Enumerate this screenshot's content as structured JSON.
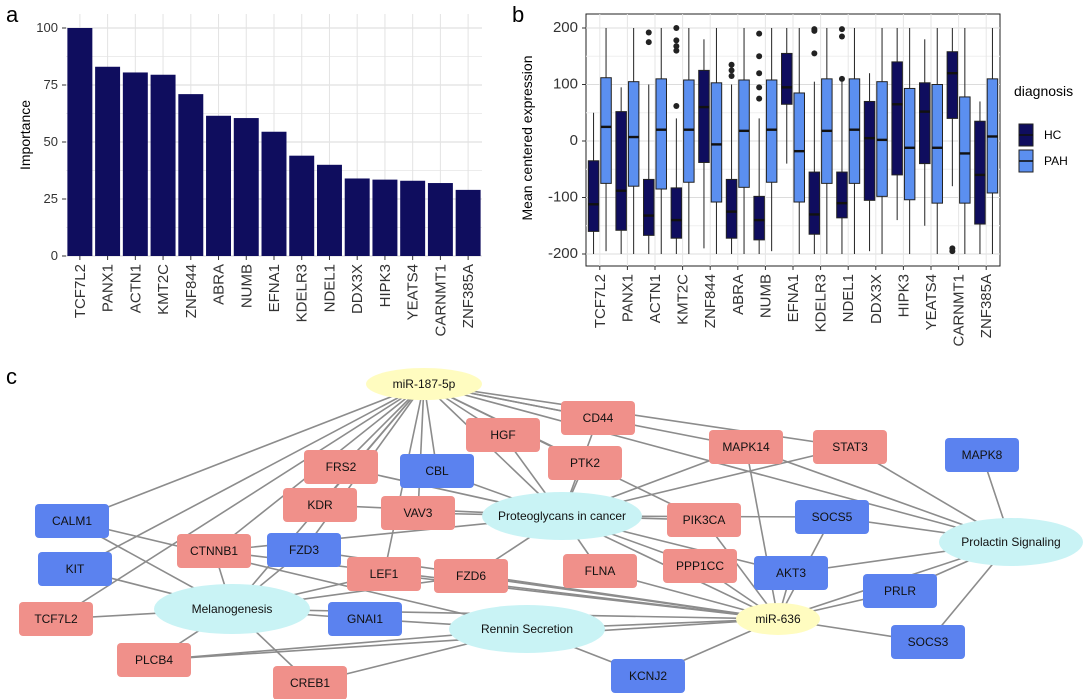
{
  "panels": {
    "a": "a",
    "b": "b",
    "c": "c"
  },
  "colors": {
    "hc": "#0f0d5e",
    "pah": "#5b8ff0",
    "red_node": "#f0908a",
    "blue_node": "#5b82ef",
    "pathway_node": "#c9f3f5",
    "mirna_node": "#fffcc0",
    "edge": "#8c8c8c"
  },
  "chart_data": [
    {
      "type": "bar",
      "panel": "a",
      "categories": [
        "TCF7L2",
        "PANX1",
        "ACTN1",
        "KMT2C",
        "ZNF844",
        "ABRA",
        "NUMB",
        "EFNA1",
        "KDELR3",
        "NDEL1",
        "DDX3X",
        "HIPK3",
        "YEATS4",
        "CARNMT1",
        "ZNF385A"
      ],
      "values": [
        100,
        83,
        80.5,
        79.5,
        71,
        61.5,
        60.5,
        54.5,
        44,
        40,
        34,
        33.5,
        33,
        32,
        29
      ],
      "ylabel": "Importance",
      "xlabel": "",
      "ylim": [
        0,
        100
      ],
      "yticks": [
        0,
        25,
        50,
        75,
        100
      ],
      "grid": true,
      "color": "#0f0d5e"
    },
    {
      "type": "boxplot",
      "panel": "b",
      "categories": [
        "TCF7L2",
        "PANX1",
        "ACTN1",
        "KMT2C",
        "ZNF844",
        "ABRA",
        "NUMB",
        "EFNA1",
        "KDELR3",
        "NDEL1",
        "DDX3X",
        "HIPK3",
        "YEATS4",
        "CARNMT1",
        "ZNF385A"
      ],
      "ylabel": "Mean centered expression",
      "ylim": [
        -210,
        210
      ],
      "yticks": [
        -200,
        -100,
        0,
        100,
        200
      ],
      "grid": true,
      "legend": {
        "title": "diagnosis",
        "position": "right",
        "entries": [
          "HC",
          "PAH"
        ]
      },
      "series": [
        {
          "name": "HC",
          "boxes": [
            {
              "min": -200,
              "q1": -160,
              "median": -112,
              "q3": -35,
              "max": 50,
              "outliers": []
            },
            {
              "min": -200,
              "q1": -158,
              "median": -88,
              "q3": 52,
              "max": 95,
              "outliers": []
            },
            {
              "min": -200,
              "q1": -167,
              "median": -132,
              "q3": -68,
              "max": 100,
              "outliers": [
                175,
                192
              ]
            },
            {
              "min": -200,
              "q1": -172,
              "median": -140,
              "q3": -83,
              "max": 40,
              "outliers": [
                62,
                160,
                168,
                178,
                200
              ]
            },
            {
              "min": -190,
              "q1": -38,
              "median": 60,
              "q3": 125,
              "max": 180,
              "outliers": []
            },
            {
              "min": -200,
              "q1": -172,
              "median": -125,
              "q3": -68,
              "max": 100,
              "outliers": [
                115,
                125,
                135
              ]
            },
            {
              "min": -200,
              "q1": -175,
              "median": -140,
              "q3": -98,
              "max": 40,
              "outliers": [
                75,
                95,
                120,
                150,
                190
              ]
            },
            {
              "min": -40,
              "q1": 65,
              "median": 95,
              "q3": 155,
              "max": 200,
              "outliers": []
            },
            {
              "min": -200,
              "q1": -165,
              "median": -130,
              "q3": -55,
              "max": 105,
              "outliers": [
                155,
                195,
                198
              ]
            },
            {
              "min": -200,
              "q1": -136,
              "median": -110,
              "q3": -55,
              "max": 105,
              "outliers": [
                110,
                185,
                198
              ]
            },
            {
              "min": -195,
              "q1": -105,
              "median": 5,
              "q3": 70,
              "max": 120,
              "outliers": []
            },
            {
              "min": -140,
              "q1": -60,
              "median": 65,
              "q3": 140,
              "max": 200,
              "outliers": []
            },
            {
              "min": -150,
              "q1": -40,
              "median": 52,
              "q3": 103,
              "max": 180,
              "outliers": []
            },
            {
              "min": -80,
              "q1": 40,
              "median": 120,
              "q3": 158,
              "max": 200,
              "outliers": [
                -190,
                -195
              ]
            },
            {
              "min": -200,
              "q1": -147,
              "median": -60,
              "q3": 35,
              "max": 70,
              "outliers": []
            }
          ]
        },
        {
          "name": "PAH",
          "boxes": [
            {
              "min": -195,
              "q1": -75,
              "median": 25,
              "q3": 112,
              "max": 200,
              "outliers": []
            },
            {
              "min": -200,
              "q1": -80,
              "median": 7,
              "q3": 105,
              "max": 200,
              "outliers": []
            },
            {
              "min": -200,
              "q1": -85,
              "median": 20,
              "q3": 110,
              "max": 200,
              "outliers": []
            },
            {
              "min": -200,
              "q1": -73,
              "median": 20,
              "q3": 108,
              "max": 200,
              "outliers": []
            },
            {
              "min": -200,
              "q1": -108,
              "median": -6,
              "q3": 103,
              "max": 200,
              "outliers": []
            },
            {
              "min": -200,
              "q1": -82,
              "median": 18,
              "q3": 108,
              "max": 200,
              "outliers": []
            },
            {
              "min": -195,
              "q1": -73,
              "median": 20,
              "q3": 108,
              "max": 200,
              "outliers": []
            },
            {
              "min": -200,
              "q1": -108,
              "median": -18,
              "q3": 85,
              "max": 200,
              "outliers": []
            },
            {
              "min": -200,
              "q1": -75,
              "median": 18,
              "q3": 110,
              "max": 200,
              "outliers": []
            },
            {
              "min": -200,
              "q1": -75,
              "median": 20,
              "q3": 110,
              "max": 200,
              "outliers": []
            },
            {
              "min": -200,
              "q1": -98,
              "median": 2,
              "q3": 105,
              "max": 200,
              "outliers": []
            },
            {
              "min": -200,
              "q1": -104,
              "median": -12,
              "q3": 93,
              "max": 200,
              "outliers": []
            },
            {
              "min": -200,
              "q1": -110,
              "median": -12,
              "q3": 100,
              "max": 200,
              "outliers": []
            },
            {
              "min": -200,
              "q1": -110,
              "median": -22,
              "q3": 78,
              "max": 200,
              "outliers": []
            },
            {
              "min": -200,
              "q1": -92,
              "median": 8,
              "q3": 110,
              "max": 200,
              "outliers": []
            }
          ]
        }
      ]
    },
    {
      "type": "network",
      "panel": "c",
      "nodes": [
        {
          "id": "mir187",
          "label": "miR-187-5p",
          "kind": "mirna"
        },
        {
          "id": "mir636",
          "label": "miR-636",
          "kind": "mirna"
        },
        {
          "id": "proteo",
          "label": "Proteoglycans in cancer",
          "kind": "pathway"
        },
        {
          "id": "melano",
          "label": "Melanogenesis",
          "kind": "pathway"
        },
        {
          "id": "rennin",
          "label": "Rennin Secretion",
          "kind": "pathway"
        },
        {
          "id": "prolactin",
          "label": "Prolactin Signaling",
          "kind": "pathway"
        },
        {
          "id": "cd44",
          "label": "CD44",
          "kind": "red"
        },
        {
          "id": "hgf",
          "label": "HGF",
          "kind": "red"
        },
        {
          "id": "ptk2",
          "label": "PTK2",
          "kind": "red"
        },
        {
          "id": "mapk14",
          "label": "MAPK14",
          "kind": "red"
        },
        {
          "id": "stat3",
          "label": "STAT3",
          "kind": "red"
        },
        {
          "id": "frs2",
          "label": "FRS2",
          "kind": "red"
        },
        {
          "id": "kdr",
          "label": "KDR",
          "kind": "red"
        },
        {
          "id": "vav3",
          "label": "VAV3",
          "kind": "red"
        },
        {
          "id": "pik3ca",
          "label": "PIK3CA",
          "kind": "red"
        },
        {
          "id": "ctnnb1",
          "label": "CTNNB1",
          "kind": "red"
        },
        {
          "id": "lef1",
          "label": "LEF1",
          "kind": "red"
        },
        {
          "id": "fzd6",
          "label": "FZD6",
          "kind": "red"
        },
        {
          "id": "flna",
          "label": "FLNA",
          "kind": "red"
        },
        {
          "id": "ppp1cc",
          "label": "PPP1CC",
          "kind": "red"
        },
        {
          "id": "tcf7l2",
          "label": "TCF7L2",
          "kind": "red"
        },
        {
          "id": "plcb4",
          "label": "PLCB4",
          "kind": "red"
        },
        {
          "id": "creb1",
          "label": "CREB1",
          "kind": "red"
        },
        {
          "id": "cbl",
          "label": "CBL",
          "kind": "blue"
        },
        {
          "id": "mapk8",
          "label": "MAPK8",
          "kind": "blue"
        },
        {
          "id": "calm1",
          "label": "CALM1",
          "kind": "blue"
        },
        {
          "id": "socs5",
          "label": "SOCS5",
          "kind": "blue"
        },
        {
          "id": "fzd3",
          "label": "FZD3",
          "kind": "blue"
        },
        {
          "id": "kit",
          "label": "KIT",
          "kind": "blue"
        },
        {
          "id": "akt3",
          "label": "AKT3",
          "kind": "blue"
        },
        {
          "id": "prlr",
          "label": "PRLR",
          "kind": "blue"
        },
        {
          "id": "gnai1",
          "label": "GNAI1",
          "kind": "blue"
        },
        {
          "id": "socs3",
          "label": "SOCS3",
          "kind": "blue"
        },
        {
          "id": "kcnj2",
          "label": "KCNJ2",
          "kind": "blue"
        }
      ],
      "edges": [
        [
          "mir187",
          "cd44"
        ],
        [
          "mir187",
          "hgf"
        ],
        [
          "mir187",
          "ptk2"
        ],
        [
          "mir187",
          "mapk14"
        ],
        [
          "mir187",
          "stat3"
        ],
        [
          "mir187",
          "frs2"
        ],
        [
          "mir187",
          "kdr"
        ],
        [
          "mir187",
          "vav3"
        ],
        [
          "mir187",
          "pik3ca"
        ],
        [
          "mir187",
          "ctnnb1"
        ],
        [
          "mir187",
          "calm1"
        ],
        [
          "mir187",
          "kit"
        ],
        [
          "mir187",
          "tcf7l2"
        ],
        [
          "mir187",
          "fzd3"
        ],
        [
          "mir187",
          "lef1"
        ],
        [
          "mir187",
          "cbl"
        ],
        [
          "mir187",
          "prolactin"
        ],
        [
          "mir187",
          "proteo"
        ],
        [
          "mir187",
          "melano"
        ],
        [
          "proteo",
          "cd44"
        ],
        [
          "proteo",
          "hgf"
        ],
        [
          "proteo",
          "ptk2"
        ],
        [
          "proteo",
          "mapk14"
        ],
        [
          "proteo",
          "stat3"
        ],
        [
          "proteo",
          "frs2"
        ],
        [
          "proteo",
          "kdr"
        ],
        [
          "proteo",
          "vav3"
        ],
        [
          "proteo",
          "pik3ca"
        ],
        [
          "proteo",
          "ctnnb1"
        ],
        [
          "proteo",
          "cbl"
        ],
        [
          "proteo",
          "flna"
        ],
        [
          "proteo",
          "ppp1cc"
        ],
        [
          "proteo",
          "fzd6"
        ],
        [
          "proteo",
          "socs5"
        ],
        [
          "proteo",
          "akt3"
        ],
        [
          "proteo",
          "mir636"
        ],
        [
          "melano",
          "calm1"
        ],
        [
          "melano",
          "kit"
        ],
        [
          "melano",
          "ctnnb1"
        ],
        [
          "melano",
          "fzd3"
        ],
        [
          "melano",
          "lef1"
        ],
        [
          "melano",
          "tcf7l2"
        ],
        [
          "melano",
          "plcb4"
        ],
        [
          "melano",
          "creb1"
        ],
        [
          "melano",
          "gnai1"
        ],
        [
          "melano",
          "fzd6"
        ],
        [
          "melano",
          "mir636"
        ],
        [
          "rennin",
          "calm1"
        ],
        [
          "rennin",
          "plcb4"
        ],
        [
          "rennin",
          "creb1"
        ],
        [
          "rennin",
          "gnai1"
        ],
        [
          "rennin",
          "kcnj2"
        ],
        [
          "rennin",
          "mir636"
        ],
        [
          "prolactin",
          "mapk8"
        ],
        [
          "prolactin",
          "stat3"
        ],
        [
          "prolactin",
          "socs5"
        ],
        [
          "prolactin",
          "akt3"
        ],
        [
          "prolactin",
          "prlr"
        ],
        [
          "prolactin",
          "socs3"
        ],
        [
          "prolactin",
          "mapk14"
        ],
        [
          "prolactin",
          "mir636"
        ],
        [
          "mir636",
          "lef1"
        ],
        [
          "mir636",
          "fzd6"
        ],
        [
          "mir636",
          "flna"
        ],
        [
          "mir636",
          "ppp1cc"
        ],
        [
          "mir636",
          "akt3"
        ],
        [
          "mir636",
          "prlr"
        ],
        [
          "mir636",
          "socs3"
        ],
        [
          "mir636",
          "kcnj2"
        ],
        [
          "mir636",
          "plcb4"
        ],
        [
          "mir636",
          "socs5"
        ],
        [
          "mir636",
          "fzd3"
        ],
        [
          "mir636",
          "ctnnb1"
        ],
        [
          "mir636",
          "mapk14"
        ],
        [
          "mir636",
          "pik3ca"
        ]
      ]
    }
  ]
}
